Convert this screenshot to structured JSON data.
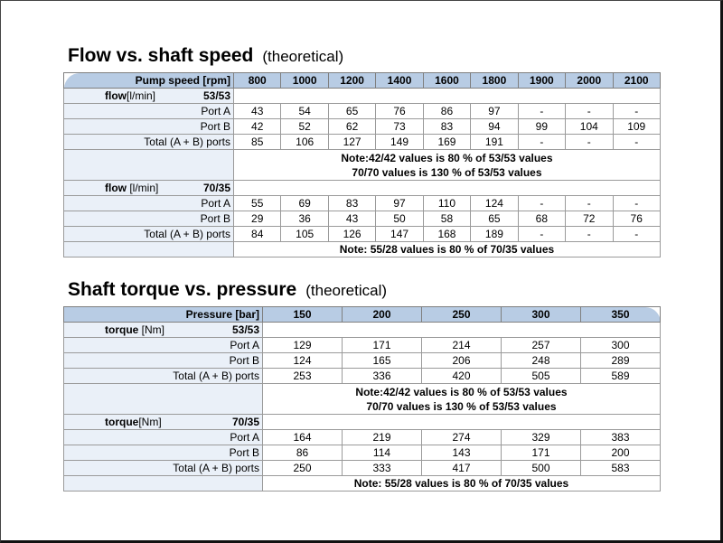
{
  "flow_section": {
    "title": "Flow vs. shaft speed",
    "subtitle": "(theoretical)",
    "header_label": "Pump speed [rpm]",
    "columns": [
      "800",
      "1000",
      "1200",
      "1400",
      "1600",
      "1800",
      "1900",
      "2000",
      "2100"
    ],
    "groups": [
      {
        "name": "flow",
        "unit": "[l/min]",
        "ratio": "53/53",
        "rows": [
          {
            "label": "Port A",
            "values": [
              "43",
              "54",
              "65",
              "76",
              "86",
              "97",
              "-",
              "-",
              "-"
            ]
          },
          {
            "label": "Port B",
            "values": [
              "42",
              "52",
              "62",
              "73",
              "83",
              "94",
              "99",
              "104",
              "109"
            ]
          },
          {
            "label": "Total (A + B) ports",
            "values": [
              "85",
              "106",
              "127",
              "149",
              "169",
              "191",
              "-",
              "-",
              "-"
            ]
          }
        ],
        "note": [
          "Note:42/42 values is 80 % of 53/53 values",
          "70/70 values is 130 % of 53/53 values"
        ]
      },
      {
        "name": "flow",
        "unit": " [l/min]",
        "ratio": "70/35",
        "rows": [
          {
            "label": "Port A",
            "values": [
              "55",
              "69",
              "83",
              "97",
              "110",
              "124",
              "-",
              "-",
              "-"
            ]
          },
          {
            "label": "Port B",
            "values": [
              "29",
              "36",
              "43",
              "50",
              "58",
              "65",
              "68",
              "72",
              "76"
            ]
          },
          {
            "label": "Total (A + B) ports",
            "values": [
              "84",
              "105",
              "126",
              "147",
              "168",
              "189",
              "-",
              "-",
              "-"
            ]
          }
        ],
        "note": [
          "Note: 55/28 values is 80 % of 70/35 values"
        ]
      }
    ]
  },
  "torque_section": {
    "title": "Shaft torque vs. pressure",
    "subtitle": "(theoretical)",
    "header_label": "Pressure [bar]",
    "columns": [
      "150",
      "200",
      "250",
      "300",
      "350"
    ],
    "groups": [
      {
        "name": "torque",
        "unit": " [Nm]",
        "ratio": "53/53",
        "rows": [
          {
            "label": "Port A",
            "values": [
              "129",
              "171",
              "214",
              "257",
              "300"
            ]
          },
          {
            "label": "Port B",
            "values": [
              "124",
              "165",
              "206",
              "248",
              "289"
            ]
          },
          {
            "label": "Total (A + B) ports",
            "values": [
              "253",
              "336",
              "420",
              "505",
              "589"
            ]
          }
        ],
        "note": [
          "Note:42/42 values is 80 % of 53/53 values",
          "70/70 values is 130 % of 53/53 values"
        ]
      },
      {
        "name": "torque",
        "unit": "[Nm]",
        "ratio": "70/35",
        "rows": [
          {
            "label": "Port A",
            "values": [
              "164",
              "219",
              "274",
              "329",
              "383"
            ]
          },
          {
            "label": "Port B",
            "values": [
              "86",
              "114",
              "143",
              "171",
              "200"
            ]
          },
          {
            "label": "Total (A + B) ports",
            "values": [
              "250",
              "333",
              "417",
              "500",
              "583"
            ]
          }
        ],
        "note": [
          "Note: 55/28 values is 80 % of 70/35 values"
        ]
      }
    ]
  },
  "colors": {
    "header_bg": "#b8cce4",
    "label_bg": "#eaf0f8",
    "border": "#9a9a9a"
  }
}
